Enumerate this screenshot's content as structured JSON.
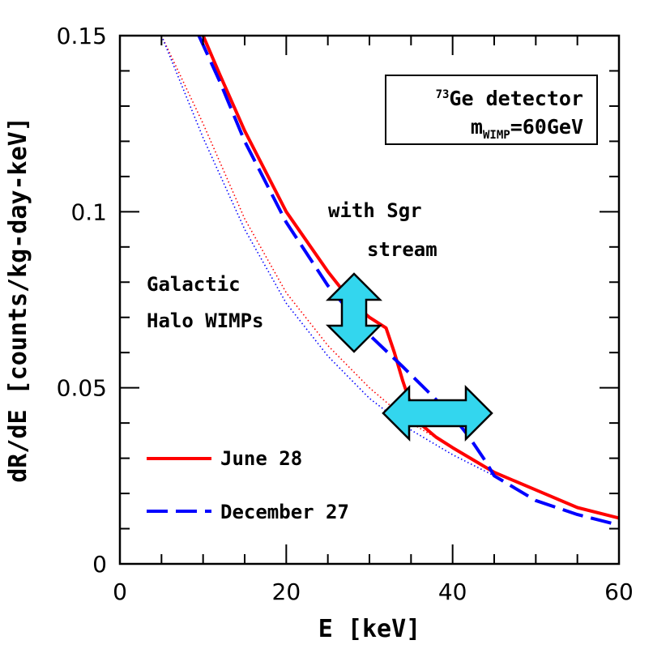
{
  "chart_data": {
    "type": "line",
    "xlabel": "E [keV]",
    "ylabel": "dR/dE [counts/kg-day-keV]",
    "xlim": [
      0,
      60
    ],
    "ylim": [
      0,
      0.15
    ],
    "xticks": [
      0,
      20,
      40,
      60
    ],
    "yticks": [
      0,
      0.05,
      0.1,
      0.15
    ],
    "xtick_labels": [
      "0",
      "20",
      "40",
      "60"
    ],
    "ytick_labels": [
      "0",
      "0.05",
      "0.1",
      "0.15"
    ],
    "grid": false,
    "legend_position": "bottom-left",
    "series": [
      {
        "name": "June 28",
        "style": "solid",
        "color": "#ff0000",
        "x": [
          10,
          12,
          15,
          20,
          25,
          28,
          30,
          32,
          33,
          34,
          35,
          36,
          38,
          40,
          45,
          50,
          55,
          60
        ],
        "y": [
          0.15,
          0.139,
          0.123,
          0.1,
          0.083,
          0.074,
          0.07,
          0.067,
          0.06,
          0.052,
          0.045,
          0.04,
          0.036,
          0.033,
          0.026,
          0.021,
          0.016,
          0.013
        ]
      },
      {
        "name": "December 27",
        "style": "dashed",
        "color": "#0000ff",
        "x": [
          9.5,
          12,
          15,
          20,
          25,
          30,
          34,
          37,
          40,
          42,
          44,
          45,
          50,
          55,
          60
        ],
        "y": [
          0.15,
          0.137,
          0.12,
          0.097,
          0.079,
          0.065,
          0.056,
          0.049,
          0.042,
          0.036,
          0.029,
          0.025,
          0.018,
          0.014,
          0.011
        ]
      },
      {
        "name": "Galactic Halo WIMPs (June)",
        "style": "dotted",
        "color": "#ff0000",
        "x": [
          5,
          10,
          15,
          20,
          25,
          30,
          35,
          40,
          45
        ],
        "y": [
          0.15,
          0.125,
          0.098,
          0.077,
          0.062,
          0.05,
          0.04,
          0.033,
          0.026
        ]
      },
      {
        "name": "Galactic Halo WIMPs (December)",
        "style": "dotted",
        "color": "#0000ff",
        "x": [
          5,
          10,
          15,
          20,
          25,
          30,
          35,
          40,
          45
        ],
        "y": [
          0.15,
          0.121,
          0.095,
          0.074,
          0.059,
          0.047,
          0.038,
          0.031,
          0.025
        ]
      }
    ],
    "legend": [
      {
        "label": "June 28",
        "color": "#ff0000",
        "style": "solid"
      },
      {
        "label": "December 27",
        "color": "#0000ff",
        "style": "dashed"
      }
    ],
    "annotations": {
      "box_line1_sup": "73",
      "box_line1": "Ge detector",
      "box_line2_main": "m",
      "box_line2_sub": "WIMP",
      "box_line2_rest": "=60GeV",
      "sgr_line1": "with Sgr",
      "sgr_line2": "stream",
      "halo_line1": "Galactic",
      "halo_line2": "Halo WIMPs"
    },
    "arrow_color": "#33d6ee"
  }
}
